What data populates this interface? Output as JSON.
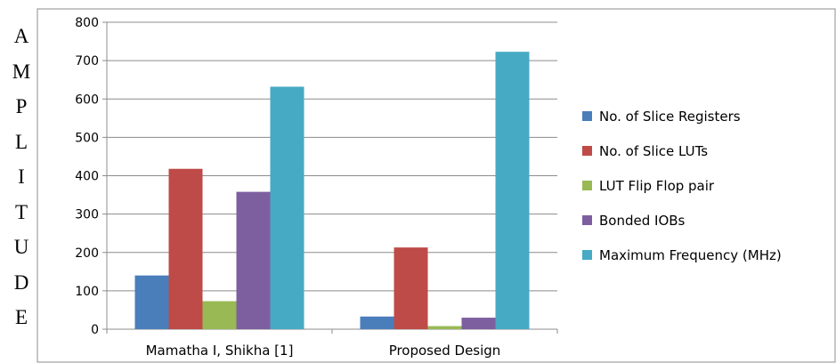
{
  "chart_data": {
    "type": "bar",
    "ylabel": "AMPLITUDE",
    "categories": [
      "Mamatha I, Shikha [1]",
      "Proposed Design"
    ],
    "ylim": [
      0,
      800
    ],
    "yticks": [
      "0",
      "100",
      "200",
      "300",
      "400",
      "500",
      "600",
      "700",
      "800"
    ],
    "grid": true,
    "legend_position": "right",
    "series": [
      {
        "name": "No. of Slice Registers",
        "color": "#4a7ebb",
        "values": [
          140,
          33
        ]
      },
      {
        "name": "No. of Slice LUTs",
        "color": "#be4b48",
        "values": [
          418,
          213
        ]
      },
      {
        "name": "LUT Flip Flop pair",
        "color": "#98b954",
        "values": [
          73,
          8
        ]
      },
      {
        "name": "Bonded IOBs",
        "color": "#7d5fa0",
        "values": [
          358,
          30
        ]
      },
      {
        "name": "Maximum Frequency (MHz)",
        "color": "#46aac4",
        "values": [
          632,
          723
        ]
      }
    ]
  }
}
